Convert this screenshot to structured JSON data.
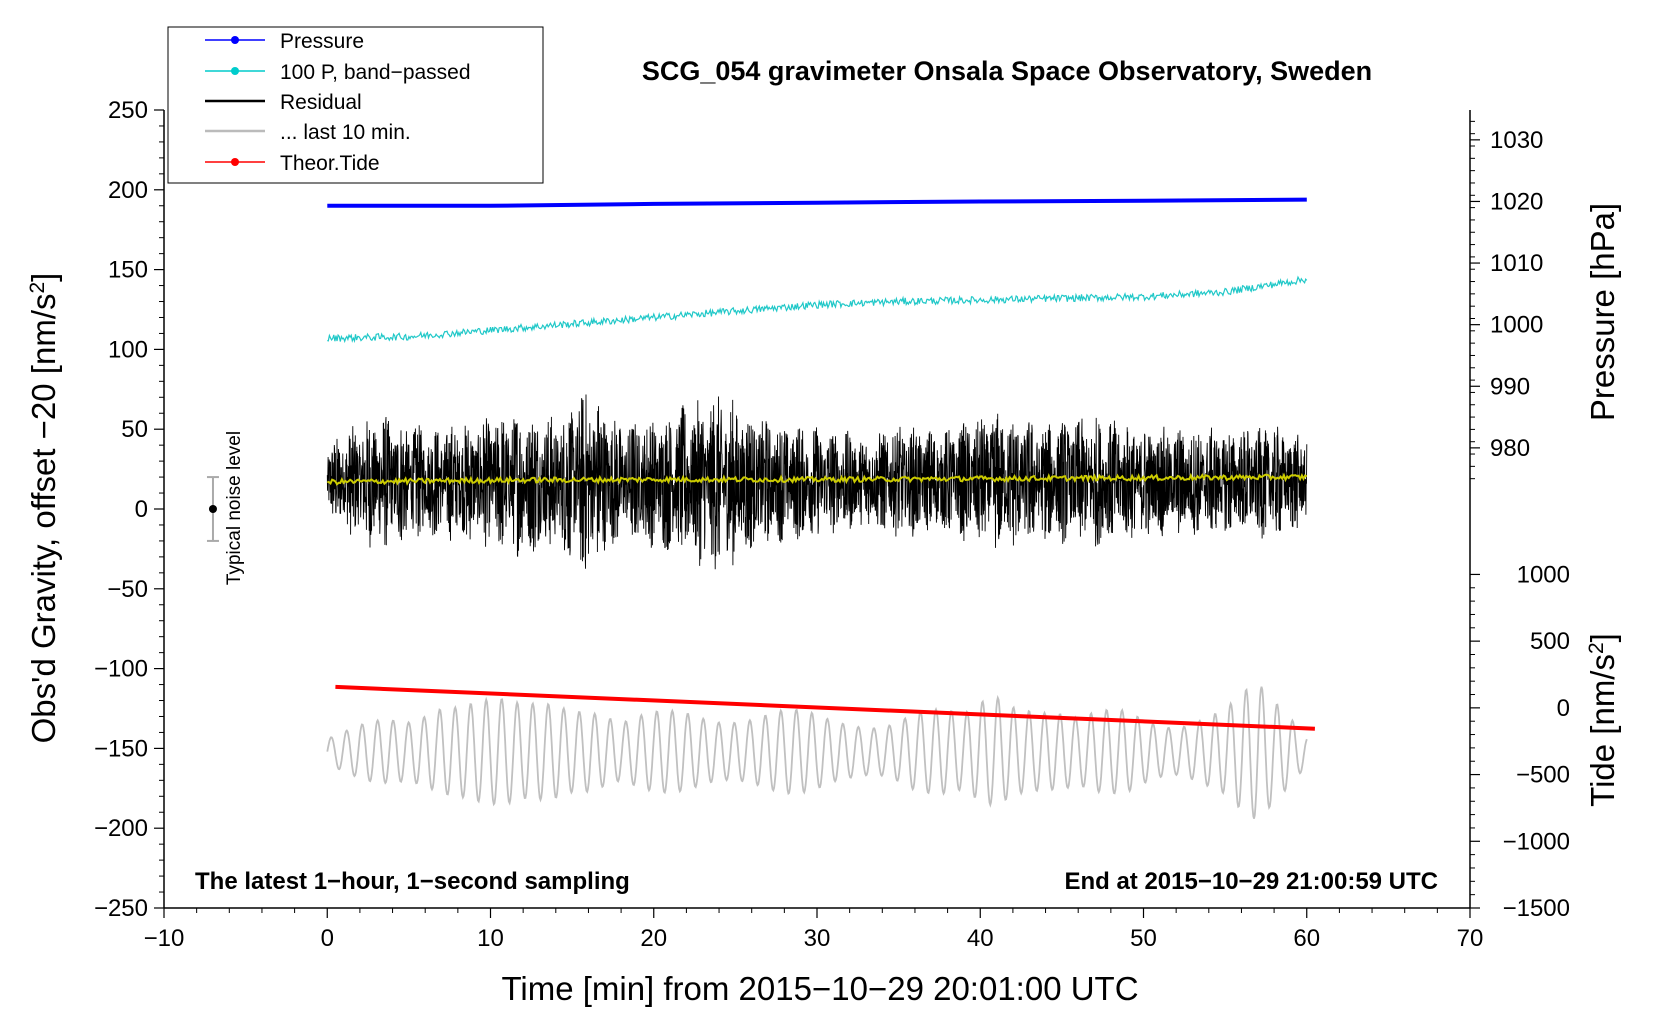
{
  "chart_data": {
    "type": "line",
    "title": "SCG_054 gravimeter Onsala Space Observatory, Sweden",
    "xlabel": "Time [min] from 2015−10−29 20:01:00 UTC",
    "ylabel_left": "Obs'd Gravity, offset −20 [nm/s",
    "ylabel_left_sup": "2",
    "ylabel_left_end": "]",
    "ylabel_right_top": "Pressure [hPa]",
    "ylabel_right_bottom": "Tide [nm/s",
    "ylabel_right_bottom_sup": "2",
    "ylabel_right_bottom_end": "]",
    "xlim": [
      -10,
      70
    ],
    "ylim_left": [
      -250,
      250
    ],
    "x_ticks": [
      -10,
      0,
      10,
      20,
      30,
      40,
      50,
      60,
      70
    ],
    "x_tick_labels": [
      "−10",
      "0",
      "10",
      "20",
      "30",
      "40",
      "50",
      "60",
      "70"
    ],
    "y_left_ticks": [
      250,
      200,
      150,
      100,
      50,
      0,
      -50,
      -100,
      -150,
      -200,
      -250
    ],
    "y_left_tick_labels": [
      "250",
      "200",
      "150",
      "100",
      "50",
      "0",
      "−50",
      "−100",
      "−150",
      "−200",
      "−250"
    ],
    "pressure_axis": {
      "ticks": [
        1030,
        1020,
        1010,
        1000,
        990,
        980
      ],
      "tick_labels": [
        "1030",
        "1020",
        "1010",
        "1000",
        "990",
        "980"
      ],
      "left_equiv_per_hpa": 3.86,
      "left_equiv_at_1000": 115.5
    },
    "tide_axis": {
      "ticks": [
        1000,
        500,
        0,
        -500,
        -1000,
        -1500
      ],
      "tick_labels": [
        "1000",
        "500",
        "0",
        "−500",
        "−1000",
        "−1500"
      ],
      "left_equiv_per_unit": 0.0836,
      "left_equiv_at_0": -124.6
    },
    "legend": [
      {
        "label": "Pressure",
        "color": "#0000ff",
        "marker": true
      },
      {
        "label": "100 P, band−passed",
        "color": "#00cccc",
        "marker": true
      },
      {
        "label": "Residual",
        "color": "#000000",
        "marker": false
      },
      {
        "label": "... last 10 min.",
        "color": "#bbbbbb",
        "marker": false
      },
      {
        "label": "Theor.Tide",
        "color": "#ff0000",
        "marker": true
      }
    ],
    "annotations": {
      "left_note": "The latest 1−hour, 1−second sampling",
      "right_note": "End at 2015−10−29 21:00:59 UTC",
      "noise_label": "Typical noise level"
    },
    "noise_bar": {
      "x": -7,
      "center": 0,
      "half_range": 20
    },
    "series": [
      {
        "name": "Pressure",
        "color": "#0000ff",
        "unit": "hPa",
        "x": [
          0,
          10,
          20,
          30,
          40,
          50,
          60
        ],
        "values": [
          1019.3,
          1019.3,
          1019.6,
          1019.8,
          1020.0,
          1020.1,
          1020.3
        ]
      },
      {
        "name": "100 P, band−passed",
        "color": "#20c8c8",
        "x": [
          0,
          5,
          10,
          15,
          20,
          25,
          30,
          35,
          40,
          45,
          50,
          55,
          60
        ],
        "values": [
          107,
          108,
          112,
          116,
          120,
          124,
          128,
          130,
          131,
          132,
          133,
          136,
          144
        ]
      },
      {
        "name": "Residual",
        "color": "#000000",
        "x_range": [
          0,
          60
        ],
        "center": 17,
        "amplitude_envelope": [
          [
            0,
            25
          ],
          [
            3,
            45
          ],
          [
            6,
            35
          ],
          [
            9,
            40
          ],
          [
            12,
            48
          ],
          [
            14,
            42
          ],
          [
            16,
            62
          ],
          [
            18,
            38
          ],
          [
            21,
            45
          ],
          [
            24,
            58
          ],
          [
            27,
            40
          ],
          [
            30,
            36
          ],
          [
            33,
            30
          ],
          [
            35,
            36
          ],
          [
            38,
            34
          ],
          [
            41,
            45
          ],
          [
            44,
            38
          ],
          [
            47,
            42
          ],
          [
            50,
            36
          ],
          [
            53,
            34
          ],
          [
            56,
            35
          ],
          [
            58,
            36
          ],
          [
            60,
            30
          ]
        ]
      },
      {
        "name": "Residual mean",
        "color": "#cccc00",
        "x": [
          0,
          10,
          20,
          30,
          40,
          50,
          60
        ],
        "values": [
          17,
          18,
          18.5,
          18.5,
          19,
          19.5,
          20
        ]
      },
      {
        "name": "... last 10 min.",
        "color": "#c0c0c0",
        "x_range": [
          0,
          60
        ],
        "center": -152,
        "amplitude_envelope": [
          [
            0,
            10
          ],
          [
            3,
            20
          ],
          [
            5,
            25
          ],
          [
            7,
            45
          ],
          [
            9,
            38
          ],
          [
            12,
            30
          ],
          [
            14,
            40
          ],
          [
            16,
            42
          ],
          [
            18,
            22
          ],
          [
            22,
            28
          ],
          [
            25,
            30
          ],
          [
            28,
            28
          ],
          [
            31,
            22
          ],
          [
            34,
            25
          ],
          [
            36,
            30
          ],
          [
            39,
            24
          ],
          [
            41,
            48
          ],
          [
            43,
            42
          ],
          [
            46,
            22
          ],
          [
            49,
            30
          ],
          [
            52,
            24
          ],
          [
            55,
            28
          ],
          [
            57,
            45
          ],
          [
            59,
            30
          ],
          [
            60,
            15
          ]
        ]
      },
      {
        "name": "Theor.Tide",
        "color": "#ff0000",
        "unit": "nm/s2",
        "x": [
          0.5,
          60.5
        ],
        "values": [
          157,
          -156
        ]
      }
    ]
  }
}
